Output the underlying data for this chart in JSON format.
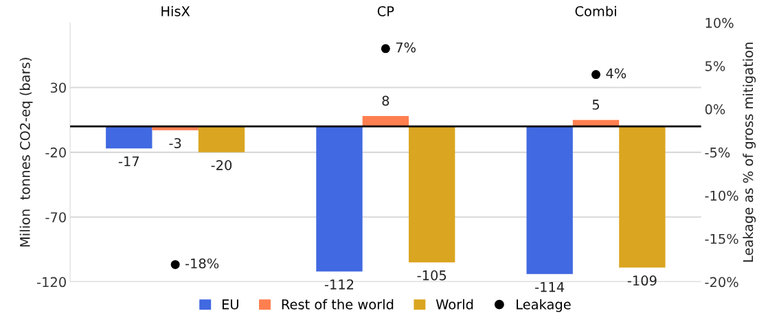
{
  "chart_data": {
    "type": "bar",
    "categories": [
      "HisX",
      "CP",
      "Combi"
    ],
    "ylabel": "Milion  tonnes CO2-eq (bars)",
    "y2label": "Leakage as % of gross mitigation",
    "series": [
      {
        "name": "EU",
        "color": "#4169e1",
        "values": [
          -17,
          -112,
          -114
        ]
      },
      {
        "name": "Rest of the world",
        "color": "#ff7f50",
        "values": [
          -3,
          8,
          5
        ]
      },
      {
        "name": "World",
        "color": "#daa520",
        "values": [
          -20,
          -105,
          -109
        ]
      },
      {
        "name": "Leakage",
        "type": "scatter",
        "axis": "y2",
        "color": "#000000",
        "values": [
          -18,
          7,
          4
        ],
        "value_labels": [
          "-18%",
          "7%",
          "4%"
        ]
      }
    ],
    "data_labels": true,
    "ylim": [
      -120,
      80
    ],
    "yticks": [
      30,
      -20,
      -70,
      -120
    ],
    "y2lim": [
      -20,
      10
    ],
    "y2ticks": [
      {
        "value": 10,
        "label": "10%"
      },
      {
        "value": 5,
        "label": "5%"
      },
      {
        "value": 0,
        "label": "0%"
      },
      {
        "value": -5,
        "label": "-5%"
      },
      {
        "value": -10,
        "label": "-10%"
      },
      {
        "value": -15,
        "label": "-15%"
      },
      {
        "value": -20,
        "label": "-20%"
      }
    ],
    "ref_lines": [
      {
        "axis": "y",
        "value": 0,
        "color": "#000000"
      }
    ],
    "grid": "y",
    "legend": "bottom",
    "marker": "circle"
  }
}
